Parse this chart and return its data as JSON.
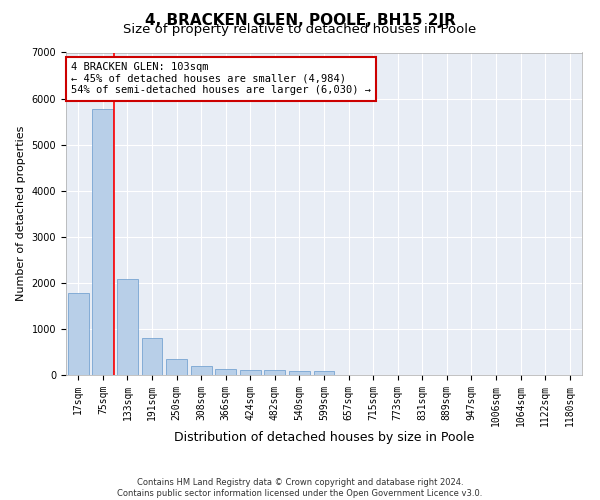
{
  "title": "4, BRACKEN GLEN, POOLE, BH15 2JR",
  "subtitle": "Size of property relative to detached houses in Poole",
  "xlabel": "Distribution of detached houses by size in Poole",
  "ylabel": "Number of detached properties",
  "categories": [
    "17sqm",
    "75sqm",
    "133sqm",
    "191sqm",
    "250sqm",
    "308sqm",
    "366sqm",
    "424sqm",
    "482sqm",
    "540sqm",
    "599sqm",
    "657sqm",
    "715sqm",
    "773sqm",
    "831sqm",
    "889sqm",
    "947sqm",
    "1006sqm",
    "1064sqm",
    "1122sqm",
    "1180sqm"
  ],
  "values": [
    1780,
    5780,
    2080,
    800,
    340,
    190,
    130,
    110,
    100,
    85,
    80,
    0,
    0,
    0,
    0,
    0,
    0,
    0,
    0,
    0,
    0
  ],
  "bar_color": "#b8cfe8",
  "bar_edge_color": "#6699cc",
  "annotation_text": "4 BRACKEN GLEN: 103sqm\n← 45% of detached houses are smaller (4,984)\n54% of semi-detached houses are larger (6,030) →",
  "annotation_box_color": "#ffffff",
  "annotation_box_edge_color": "#cc0000",
  "red_line_x": 1.45,
  "ylim": [
    0,
    7000
  ],
  "yticks": [
    0,
    1000,
    2000,
    3000,
    4000,
    5000,
    6000,
    7000
  ],
  "background_color": "#e8edf5",
  "grid_color": "#ffffff",
  "footnote": "Contains HM Land Registry data © Crown copyright and database right 2024.\nContains public sector information licensed under the Open Government Licence v3.0.",
  "title_fontsize": 11,
  "subtitle_fontsize": 9.5,
  "xlabel_fontsize": 9,
  "ylabel_fontsize": 8,
  "tick_fontsize": 7,
  "annot_fontsize": 7.5
}
